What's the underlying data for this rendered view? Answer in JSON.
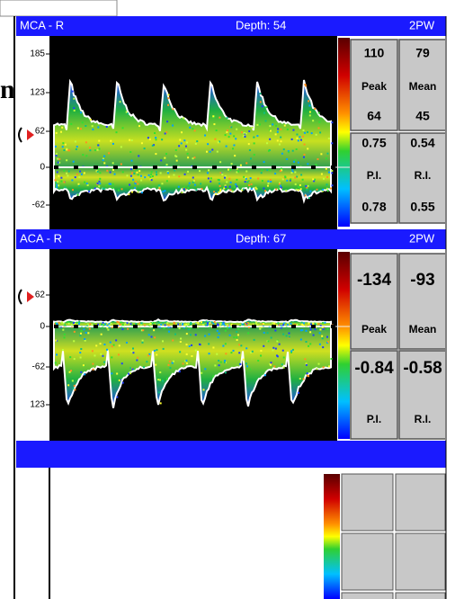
{
  "fragment": "n",
  "panels": [
    {
      "vessel": "MCA - R",
      "depth": "Depth: 54",
      "mode": "2PW",
      "scale": [
        "185",
        "123",
        "62",
        "0",
        "-62"
      ],
      "cells": [
        [
          "110",
          "79"
        ],
        [
          "Peak",
          "Mean"
        ],
        [
          "64",
          "45"
        ],
        [
          "0.75",
          "0.54"
        ],
        [
          "P.I.",
          "R.I."
        ],
        [
          "0.78",
          "0.55"
        ]
      ]
    },
    {
      "vessel": "ACA - R",
      "depth": "Depth: 67",
      "mode": "2PW",
      "scale": [
        "62",
        "0",
        "-62",
        "123"
      ],
      "cells": [
        [
          "-134",
          "-93"
        ],
        [
          "Peak",
          "Mean"
        ],
        [
          "-0.84",
          "-0.58"
        ],
        [
          "P.I.",
          "R.I."
        ]
      ]
    }
  ]
}
